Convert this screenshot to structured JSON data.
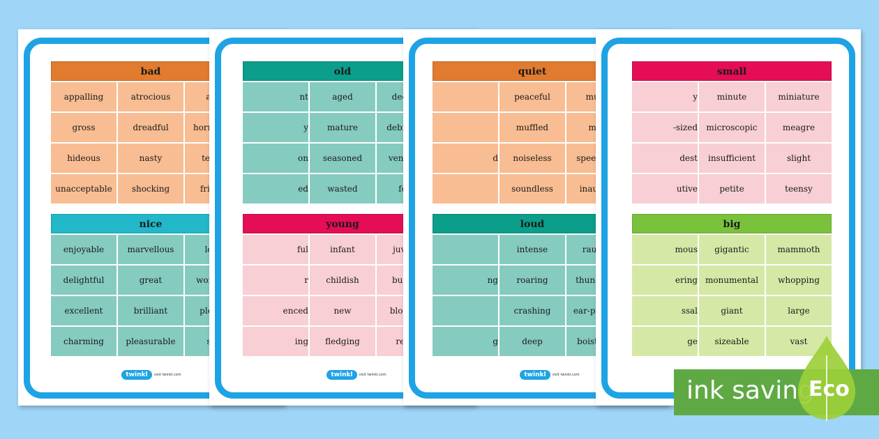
{
  "sheets": [
    {
      "panels": [
        {
          "title": "bad",
          "theme": "orange",
          "words": [
            "appalling",
            "atrocious",
            "awful",
            "gross",
            "dreadful",
            "horrendous",
            "hideous",
            "nasty",
            "terrible",
            "unacceptable",
            "shocking",
            "frightful"
          ]
        },
        {
          "title": "nice",
          "theme": "cyan-teal",
          "words": [
            "enjoyable",
            "marvellous",
            "loving",
            "delightful",
            "great",
            "wonderful",
            "excellent",
            "brilliant",
            "pleasant",
            "charming",
            "pleasurable",
            "swell"
          ]
        }
      ],
      "logo": "twinkl",
      "logo_url": "visit twinkl.com"
    },
    {
      "panels": [
        {
          "title": "old",
          "theme": "teal",
          "words": [
            "nt",
            "aged",
            "decrepit",
            "y",
            "mature",
            "debilitated",
            "on",
            "seasoned",
            "venerable",
            "ed",
            "wasted",
            "fossil"
          ]
        },
        {
          "title": "young",
          "theme": "pink",
          "words": [
            "ful",
            "infant",
            "juvenile",
            "r",
            "childish",
            "budding",
            "enced",
            "new",
            "blooming",
            "ing",
            "fledging",
            "recent"
          ]
        }
      ],
      "logo": "twinkl",
      "logo_url": "visit twinkl.com"
    },
    {
      "panels": [
        {
          "title": "quiet",
          "theme": "orange",
          "words": [
            "",
            "peaceful",
            "muted",
            "",
            "muffled",
            "mute",
            "d",
            "noiseless",
            "speechless",
            "",
            "soundless",
            "inaudible"
          ]
        },
        {
          "title": "loud",
          "theme": "teal",
          "words": [
            "",
            "intense",
            "raucous",
            "ng",
            "roaring",
            "thundering",
            "",
            "crashing",
            "ear-piercing",
            "g",
            "deep",
            "boisterous"
          ]
        }
      ],
      "logo": "twinkl",
      "logo_url": "visit twinkl.com"
    },
    {
      "panels": [
        {
          "title": "small",
          "theme": "pink",
          "words": [
            "y",
            "minute",
            "miniature",
            "-sized",
            "microscopic",
            "meagre",
            "dest",
            "insufficient",
            "slight",
            "utive",
            "petite",
            "teensy"
          ]
        },
        {
          "title": "big",
          "theme": "lime",
          "words": [
            "mous",
            "gigantic",
            "mammoth",
            "ering",
            "monumental",
            "whopping",
            "ssal",
            "giant",
            "large",
            "ge",
            "sizeable",
            "vast"
          ]
        }
      ]
    }
  ],
  "badge": {
    "label": "ink saving",
    "eco": "Eco"
  },
  "colors": {
    "background": "#9fd5f7",
    "frame": "#1ea3e4",
    "badge": "#5fa944"
  }
}
